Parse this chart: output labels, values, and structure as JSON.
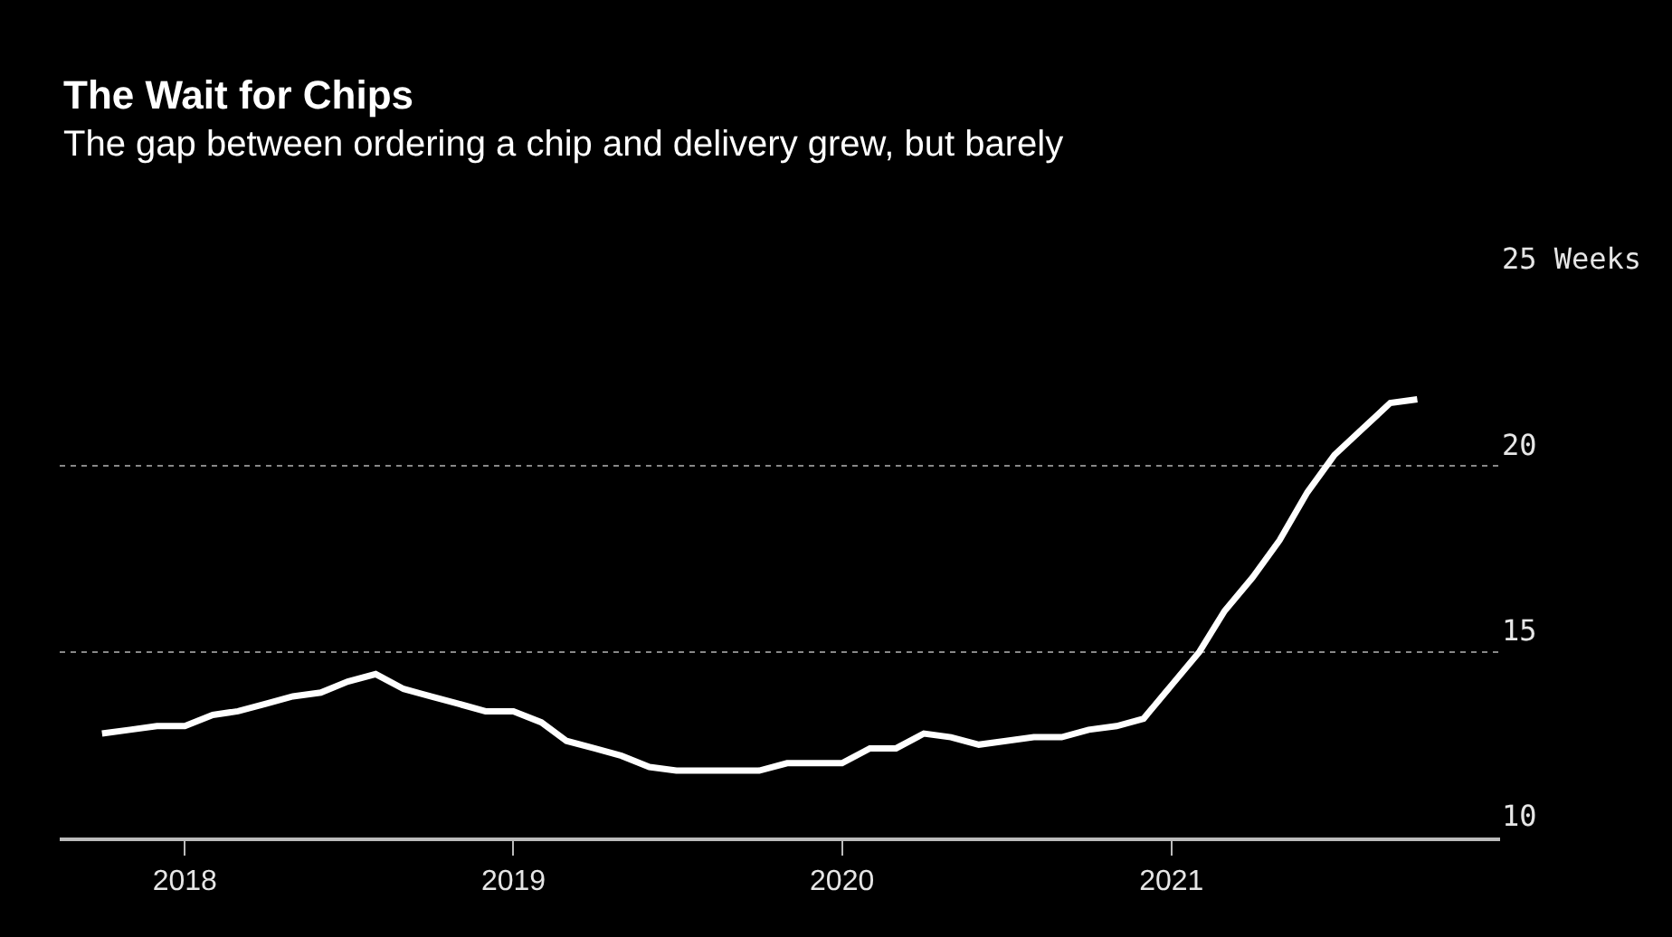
{
  "chart_data": {
    "type": "line",
    "title": "The Wait for Chips",
    "subtitle": "The gap between ordering a chip and delivery grew, but barely",
    "x": [
      "2017-10",
      "2017-11",
      "2017-12",
      "2018-01",
      "2018-02",
      "2018-03",
      "2018-04",
      "2018-05",
      "2018-06",
      "2018-07",
      "2018-08",
      "2018-09",
      "2018-10",
      "2018-11",
      "2018-12",
      "2019-01",
      "2019-02",
      "2019-03",
      "2019-04",
      "2019-05",
      "2019-06",
      "2019-07",
      "2019-08",
      "2019-09",
      "2019-10",
      "2019-11",
      "2019-12",
      "2020-01",
      "2020-02",
      "2020-03",
      "2020-04",
      "2020-05",
      "2020-06",
      "2020-07",
      "2020-08",
      "2020-09",
      "2020-10",
      "2020-11",
      "2020-12",
      "2021-01",
      "2021-02",
      "2021-03",
      "2021-04",
      "2021-05",
      "2021-06",
      "2021-07",
      "2021-08",
      "2021-09",
      "2021-10"
    ],
    "series": [
      {
        "color": "#ffffff",
        "values": [
          12.8,
          12.9,
          13.0,
          13.0,
          13.3,
          13.4,
          13.6,
          13.8,
          13.9,
          14.2,
          14.4,
          14.0,
          13.8,
          13.6,
          13.4,
          13.4,
          13.1,
          12.6,
          12.4,
          12.2,
          11.9,
          11.8,
          11.8,
          11.8,
          11.8,
          12.0,
          12.0,
          12.0,
          12.4,
          12.4,
          12.8,
          12.7,
          12.5,
          12.6,
          12.7,
          12.7,
          12.9,
          13.0,
          13.2,
          14.1,
          15.0,
          16.1,
          17.0,
          18.0,
          19.3,
          20.3,
          21.0,
          21.7,
          21.8
        ]
      }
    ],
    "xlim": [
      "2017-08-15",
      "2022-01-01"
    ],
    "xticks": [
      {
        "value": "2018-01-01",
        "label": "2018"
      },
      {
        "value": "2019-01-01",
        "label": "2019"
      },
      {
        "value": "2020-01-01",
        "label": "2020"
      },
      {
        "value": "2021-01-01",
        "label": "2021"
      }
    ],
    "ylim": [
      10,
      25
    ],
    "yticks": [
      10,
      15,
      20,
      {
        "value": 25,
        "label": "25 Weeks"
      }
    ],
    "grid": "y",
    "marker": "none",
    "line_style": "solid"
  }
}
